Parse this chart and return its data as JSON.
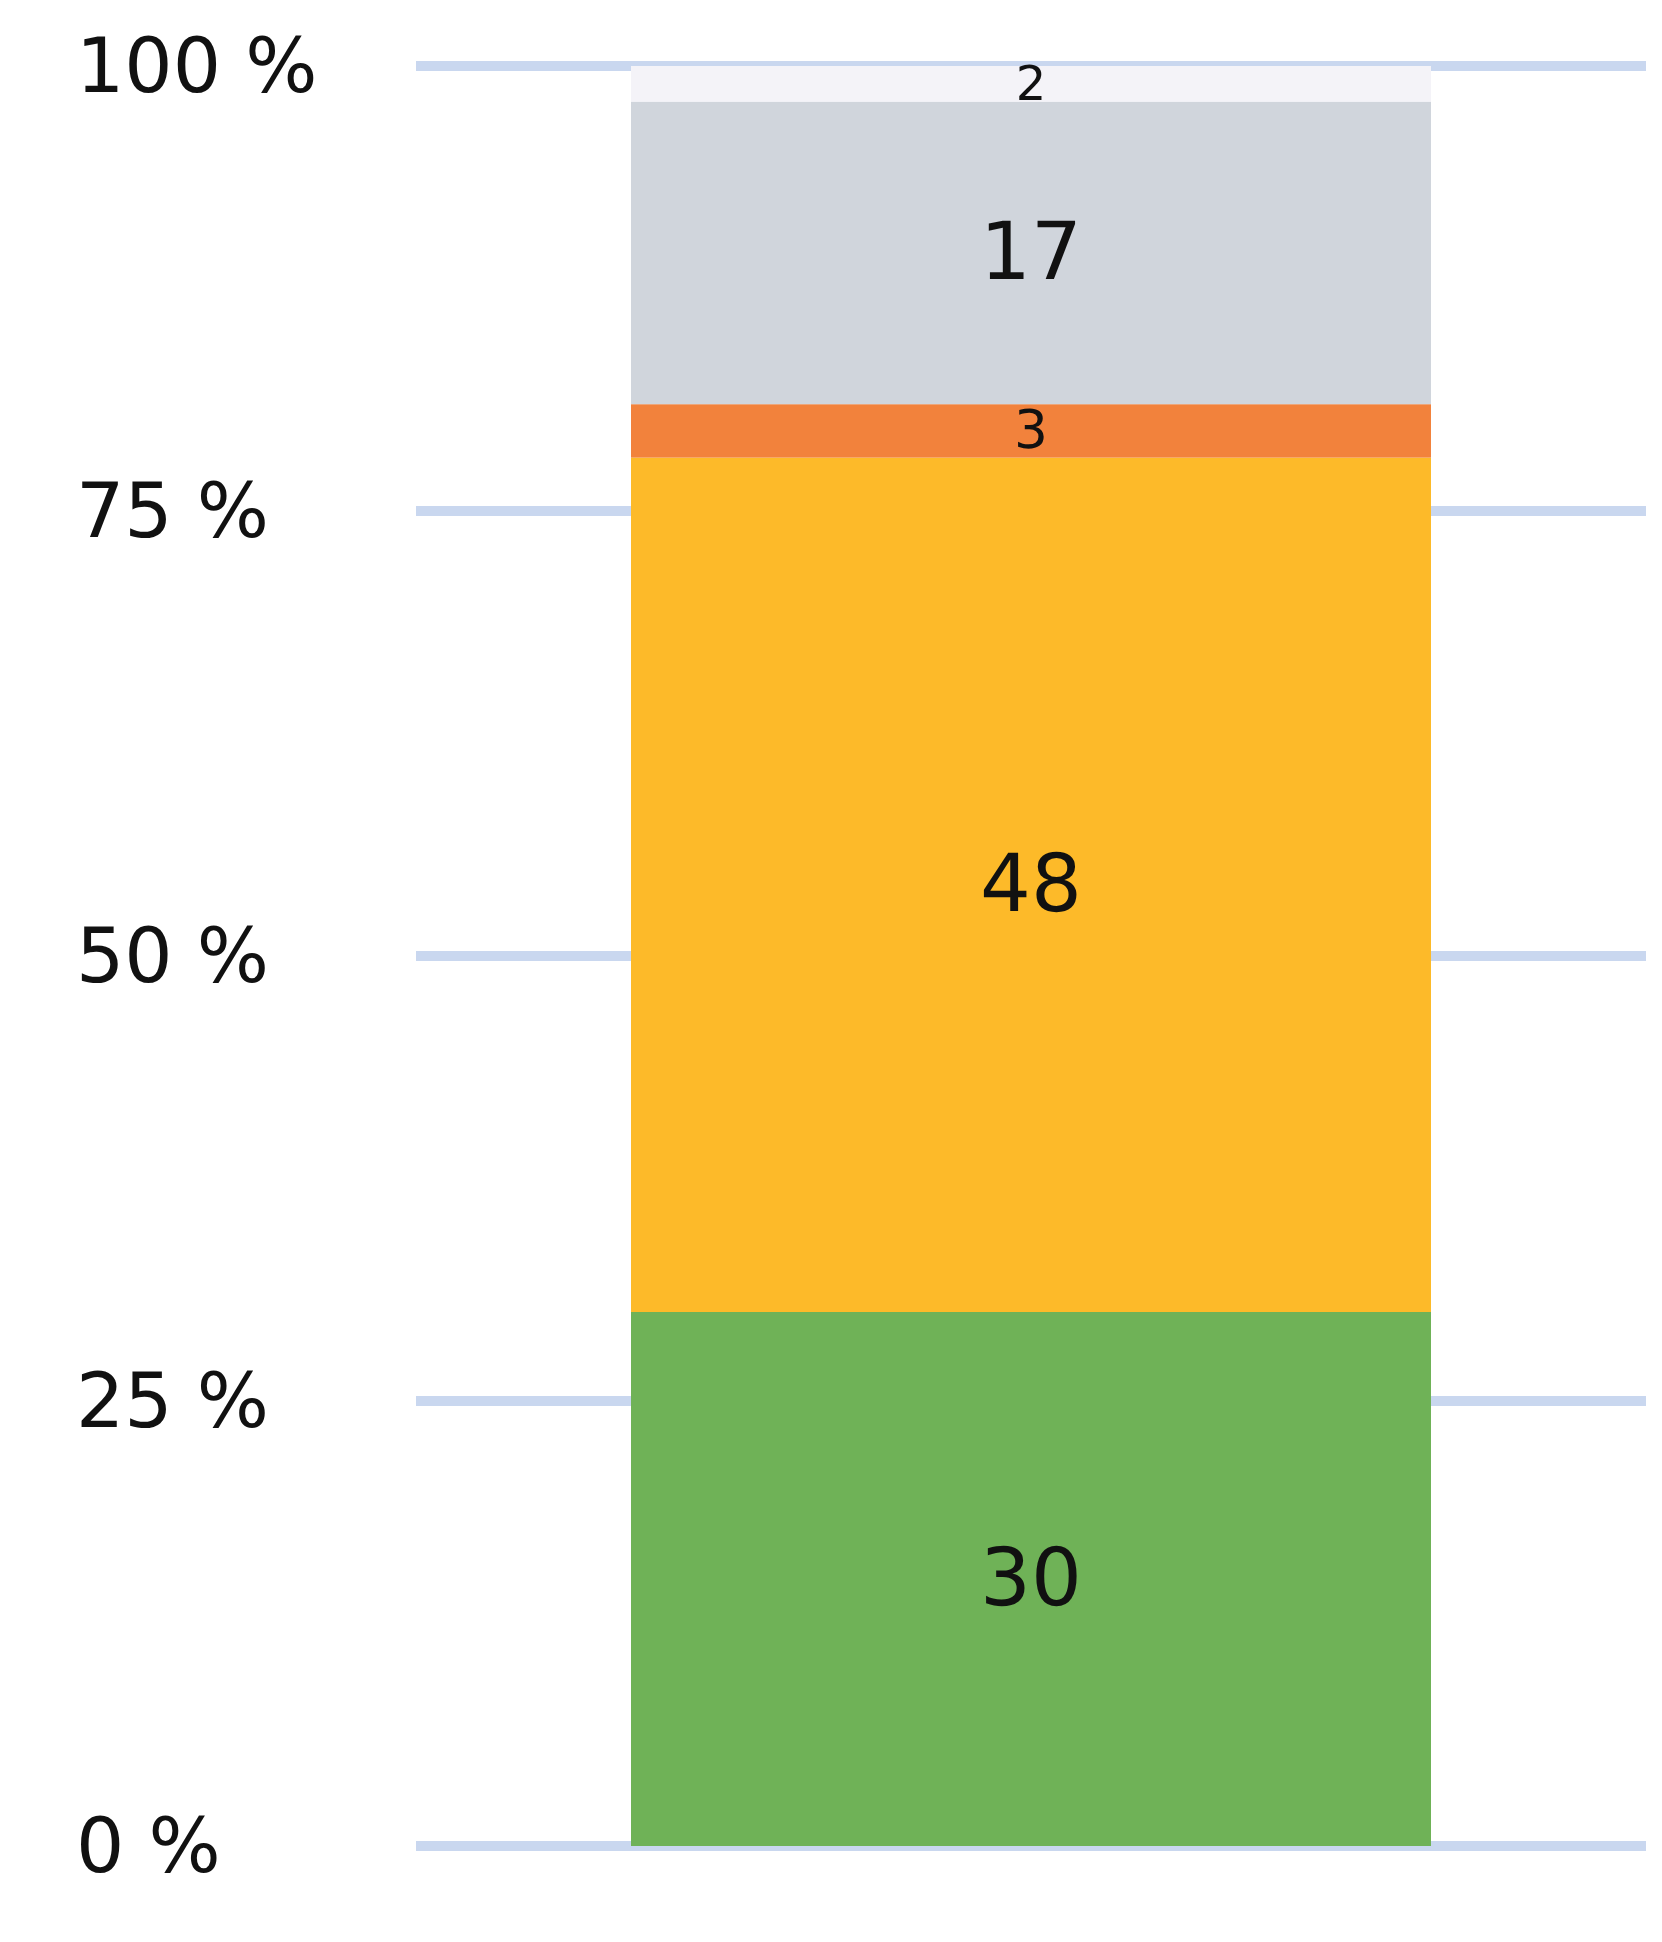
{
  "chart_data": {
    "type": "bar",
    "stacked": true,
    "categories": [
      null
    ],
    "series": [
      {
        "color": "#6fb257",
        "values": [
          30
        ]
      },
      {
        "color": "#fdba29",
        "values": [
          48
        ]
      },
      {
        "color": "#f2823c",
        "values": [
          3
        ]
      },
      {
        "color": "#d0d5dc",
        "values": [
          17
        ]
      },
      {
        "color": "#f4f3f8",
        "values": [
          2
        ]
      }
    ],
    "ylim": [
      0,
      100
    ],
    "yticks": [
      {
        "value": 0,
        "label": "0 %"
      },
      {
        "value": 25,
        "label": "25 %"
      },
      {
        "value": 50,
        "label": "50 %"
      },
      {
        "value": 75,
        "label": "75 %"
      },
      {
        "value": 100,
        "label": "100 %"
      }
    ],
    "grid": "y",
    "data_labels": true
  }
}
